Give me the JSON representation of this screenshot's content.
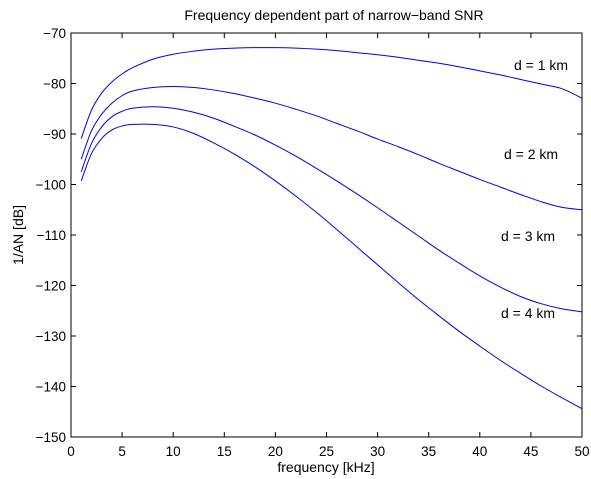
{
  "chart_data": {
    "type": "line",
    "title": "Frequency dependent part of narrow−band SNR",
    "xlabel": "frequency [kHz]",
    "ylabel": "1/AN [dB]",
    "xlim": [
      0,
      50
    ],
    "ylim": [
      -150,
      -70
    ],
    "xticks": [
      0,
      5,
      10,
      15,
      20,
      25,
      30,
      35,
      40,
      45,
      50
    ],
    "yticks": [
      -70,
      -80,
      -90,
      -100,
      -110,
      -120,
      -130,
      -140,
      -150
    ],
    "xtick_labels": [
      "0",
      "5",
      "10",
      "15",
      "20",
      "25",
      "30",
      "35",
      "40",
      "45",
      "50"
    ],
    "ytick_labels": [
      "−70",
      "−80",
      "−90",
      "−100",
      "−110",
      "−120",
      "−130",
      "−140",
      "−150"
    ],
    "grid": false,
    "line_color": "#0000ff",
    "x": [
      1,
      2,
      3,
      4,
      5,
      6,
      8,
      10,
      12,
      14,
      16,
      18,
      20,
      22,
      24,
      26,
      28,
      30,
      32,
      34,
      36,
      38,
      40,
      42,
      44,
      46,
      48,
      50
    ],
    "series": [
      {
        "annotation": "d = 1 km",
        "values": [
          -90.9,
          -85.3,
          -81.9,
          -79.7,
          -78.1,
          -76.9,
          -75.2,
          -74.2,
          -73.6,
          -73.2,
          -73.0,
          -72.9,
          -72.9,
          -73.0,
          -73.2,
          -73.5,
          -73.9,
          -74.3,
          -74.8,
          -75.4,
          -76.0,
          -76.7,
          -77.5,
          -78.3,
          -79.2,
          -80.1,
          -81.0,
          -82.9
        ]
      },
      {
        "annotation": "d = 2 km",
        "values": [
          -95.0,
          -89.4,
          -86.1,
          -83.9,
          -82.4,
          -81.5,
          -80.8,
          -80.6,
          -80.8,
          -81.3,
          -82.0,
          -82.9,
          -83.9,
          -85.1,
          -86.4,
          -87.9,
          -89.4,
          -91.0,
          -92.5,
          -94.1,
          -95.8,
          -97.4,
          -99.0,
          -100.5,
          -102.0,
          -103.4,
          -104.5,
          -105.0
        ]
      },
      {
        "annotation": "d = 3 km",
        "values": [
          -97.5,
          -91.9,
          -88.6,
          -86.6,
          -85.5,
          -84.9,
          -84.6,
          -84.9,
          -85.7,
          -86.9,
          -88.5,
          -90.2,
          -92.2,
          -94.4,
          -96.8,
          -99.3,
          -101.9,
          -104.6,
          -107.4,
          -110.2,
          -113.0,
          -115.6,
          -118.1,
          -120.3,
          -122.2,
          -123.6,
          -124.6,
          -125.2
        ]
      },
      {
        "annotation": "d = 4 km",
        "values": [
          -99.3,
          -93.9,
          -90.9,
          -89.2,
          -88.4,
          -88.1,
          -88.1,
          -88.6,
          -89.9,
          -91.8,
          -94.0,
          -96.5,
          -99.3,
          -102.3,
          -105.5,
          -108.9,
          -112.4,
          -115.9,
          -119.4,
          -122.8,
          -126.0,
          -129.1,
          -132.0,
          -134.8,
          -137.4,
          -139.9,
          -142.2,
          -144.4
        ]
      }
    ]
  }
}
